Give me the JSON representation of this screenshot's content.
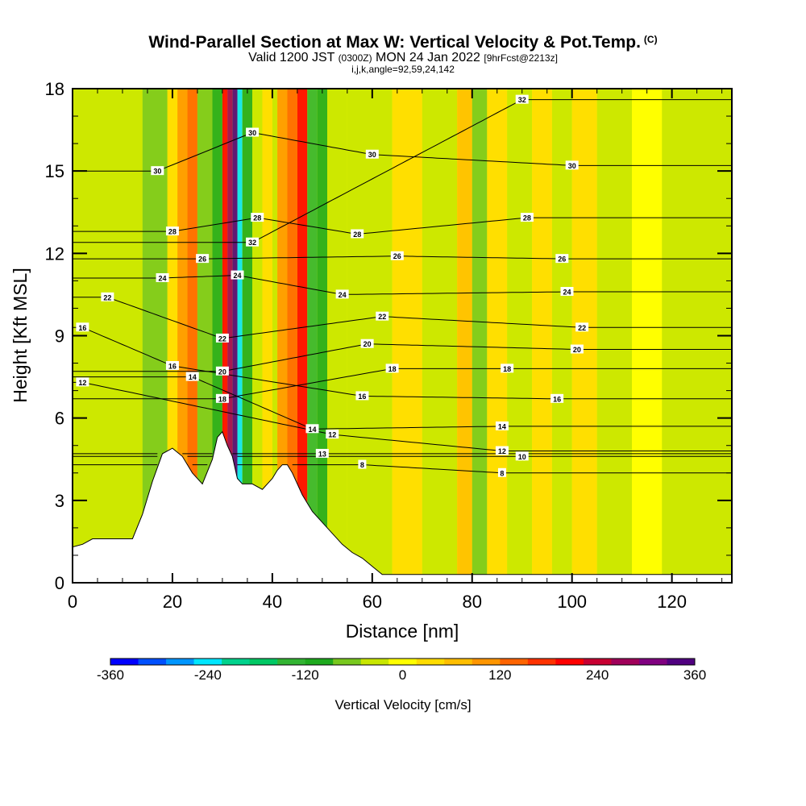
{
  "header": {
    "title": "Wind-Parallel Section at Max W: Vertical Velocity & Pot.Temp.",
    "copyright": "(C)",
    "valid_prefix": "Valid 1200 JST",
    "valid_utc": "(0300Z)",
    "valid_date": "MON 24 Jan 2022",
    "forecast": "[9hrFcst@2213z]",
    "indices": "i,j,k,angle=92,59,24,142"
  },
  "chart_data": {
    "type": "heatmap",
    "xlabel": "Distance [nm]",
    "ylabel": "Height [Kft MSL]",
    "xlim": [
      0,
      132
    ],
    "ylim": [
      0,
      18
    ],
    "x_ticks": [
      0,
      20,
      40,
      60,
      80,
      100,
      120
    ],
    "y_ticks": [
      0,
      3,
      6,
      9,
      12,
      15,
      18
    ],
    "colorbar": {
      "label": "Vertical Velocity [cm/s]",
      "range": [
        -360,
        360
      ],
      "tick_values": [
        -360,
        -240,
        -120,
        0,
        120,
        240,
        360
      ],
      "tick_labels": [
        "-360",
        "-240",
        "-120",
        "0",
        "120",
        "240",
        "360"
      ],
      "colors": [
        "#0000ff",
        "#0050ff",
        "#0096ff",
        "#00e6ff",
        "#00d28c",
        "#00c864",
        "#32b432",
        "#1eaa1e",
        "#78c81e",
        "#c8e600",
        "#ffff00",
        "#ffdc00",
        "#ffbe00",
        "#ff9600",
        "#ff6400",
        "#ff3200",
        "#ff0000",
        "#c80032",
        "#a0005a",
        "#800080",
        "#500080"
      ]
    },
    "terrain": {
      "x": [
        0,
        2,
        4,
        6,
        8,
        10,
        12,
        14,
        16,
        18,
        20,
        22,
        24,
        26,
        28,
        29,
        30,
        31,
        32,
        33,
        34,
        36,
        38,
        40,
        41,
        42,
        43,
        44,
        46,
        48,
        50,
        52,
        54,
        56,
        58,
        60,
        62,
        64
      ],
      "top_kft": [
        1.3,
        1.4,
        1.6,
        1.6,
        1.6,
        1.6,
        1.6,
        2.5,
        3.7,
        4.7,
        4.9,
        4.6,
        4.0,
        3.6,
        4.5,
        5.3,
        5.5,
        5.0,
        4.6,
        3.8,
        3.6,
        3.6,
        3.4,
        3.8,
        4.1,
        4.3,
        4.3,
        4.0,
        3.2,
        2.6,
        2.2,
        1.8,
        1.4,
        1.1,
        0.9,
        0.6,
        0.3,
        0.3
      ]
    },
    "velocity_bands": [
      {
        "x_start": 0,
        "x_end": 14,
        "w": -30
      },
      {
        "x_start": 14,
        "x_end": 19,
        "w": -70
      },
      {
        "x_start": 19,
        "x_end": 21,
        "w": 20
      },
      {
        "x_start": 21,
        "x_end": 23,
        "w": 90
      },
      {
        "x_start": 23,
        "x_end": 25,
        "w": 140
      },
      {
        "x_start": 25,
        "x_end": 28,
        "w": -60
      },
      {
        "x_start": 28,
        "x_end": 30,
        "w": -100
      },
      {
        "x_start": 30,
        "x_end": 31,
        "w": 210
      },
      {
        "x_start": 31,
        "x_end": 32,
        "w": 260
      },
      {
        "x_start": 32,
        "x_end": 33,
        "w": 340
      },
      {
        "x_start": 33,
        "x_end": 34,
        "w": -240
      },
      {
        "x_start": 34,
        "x_end": 36,
        "w": -120
      },
      {
        "x_start": 36,
        "x_end": 38,
        "w": -40
      },
      {
        "x_start": 38,
        "x_end": 40,
        "w": 40
      },
      {
        "x_start": 40,
        "x_end": 41,
        "w": -30
      },
      {
        "x_start": 41,
        "x_end": 43,
        "w": 90
      },
      {
        "x_start": 43,
        "x_end": 45,
        "w": 150
      },
      {
        "x_start": 45,
        "x_end": 47,
        "w": 200
      },
      {
        "x_start": 47,
        "x_end": 49,
        "w": -150
      },
      {
        "x_start": 49,
        "x_end": 51,
        "w": -90
      },
      {
        "x_start": 51,
        "x_end": 55,
        "w": -40
      },
      {
        "x_start": 55,
        "x_end": 64,
        "w": -20
      },
      {
        "x_start": 64,
        "x_end": 70,
        "w": 20
      },
      {
        "x_start": 70,
        "x_end": 77,
        "w": -30
      },
      {
        "x_start": 77,
        "x_end": 80,
        "w": 60
      },
      {
        "x_start": 80,
        "x_end": 83,
        "w": -80
      },
      {
        "x_start": 83,
        "x_end": 87,
        "w": 30
      },
      {
        "x_start": 87,
        "x_end": 92,
        "w": -30
      },
      {
        "x_start": 92,
        "x_end": 96,
        "w": 50
      },
      {
        "x_start": 96,
        "x_end": 100,
        "w": -30
      },
      {
        "x_start": 100,
        "x_end": 105,
        "w": 20
      },
      {
        "x_start": 105,
        "x_end": 112,
        "w": -30
      },
      {
        "x_start": 112,
        "x_end": 118,
        "w": 10
      },
      {
        "x_start": 118,
        "x_end": 132,
        "w": -20
      }
    ],
    "theta_contours": {
      "interval_K": 2,
      "labeled": [
        {
          "text": "8",
          "x": 58,
          "y": 4.3
        },
        {
          "text": "8",
          "x": 86,
          "y": 4.0
        },
        {
          "text": "10",
          "x": 90,
          "y": 4.6
        },
        {
          "text": "12",
          "x": 2,
          "y": 7.3
        },
        {
          "text": "12",
          "x": 52,
          "y": 5.4
        },
        {
          "text": "12",
          "x": 86,
          "y": 4.8
        },
        {
          "text": "13",
          "x": 50,
          "y": 4.7
        },
        {
          "text": "14",
          "x": 24,
          "y": 7.5
        },
        {
          "text": "14",
          "x": 48,
          "y": 5.6
        },
        {
          "text": "14",
          "x": 86,
          "y": 5.7
        },
        {
          "text": "16",
          "x": 2,
          "y": 9.3
        },
        {
          "text": "16",
          "x": 20,
          "y": 7.9
        },
        {
          "text": "16",
          "x": 58,
          "y": 6.8
        },
        {
          "text": "16",
          "x": 97,
          "y": 6.7
        },
        {
          "text": "18",
          "x": 30,
          "y": 6.7
        },
        {
          "text": "18",
          "x": 64,
          "y": 7.8
        },
        {
          "text": "18",
          "x": 87,
          "y": 7.8
        },
        {
          "text": "20",
          "x": 30,
          "y": 7.7
        },
        {
          "text": "20",
          "x": 59,
          "y": 8.7
        },
        {
          "text": "20",
          "x": 101,
          "y": 8.5
        },
        {
          "text": "22",
          "x": 7,
          "y": 10.4
        },
        {
          "text": "22",
          "x": 30,
          "y": 8.9
        },
        {
          "text": "22",
          "x": 62,
          "y": 9.7
        },
        {
          "text": "22",
          "x": 102,
          "y": 9.3
        },
        {
          "text": "24",
          "x": 18,
          "y": 11.1
        },
        {
          "text": "24",
          "x": 33,
          "y": 11.2
        },
        {
          "text": "24",
          "x": 54,
          "y": 10.5
        },
        {
          "text": "24",
          "x": 99,
          "y": 10.6
        },
        {
          "text": "26",
          "x": 26,
          "y": 11.8
        },
        {
          "text": "26",
          "x": 65,
          "y": 11.9
        },
        {
          "text": "26",
          "x": 98,
          "y": 11.8
        },
        {
          "text": "28",
          "x": 20,
          "y": 12.8
        },
        {
          "text": "28",
          "x": 37,
          "y": 13.3
        },
        {
          "text": "28",
          "x": 57,
          "y": 12.7
        },
        {
          "text": "28",
          "x": 91,
          "y": 13.3
        },
        {
          "text": "30",
          "x": 17,
          "y": 15.0
        },
        {
          "text": "30",
          "x": 36,
          "y": 16.4
        },
        {
          "text": "30",
          "x": 60,
          "y": 15.6
        },
        {
          "text": "30",
          "x": 100,
          "y": 15.2
        },
        {
          "text": "32",
          "x": 36,
          "y": 12.4
        },
        {
          "text": "32",
          "x": 90,
          "y": 17.6
        }
      ]
    }
  }
}
